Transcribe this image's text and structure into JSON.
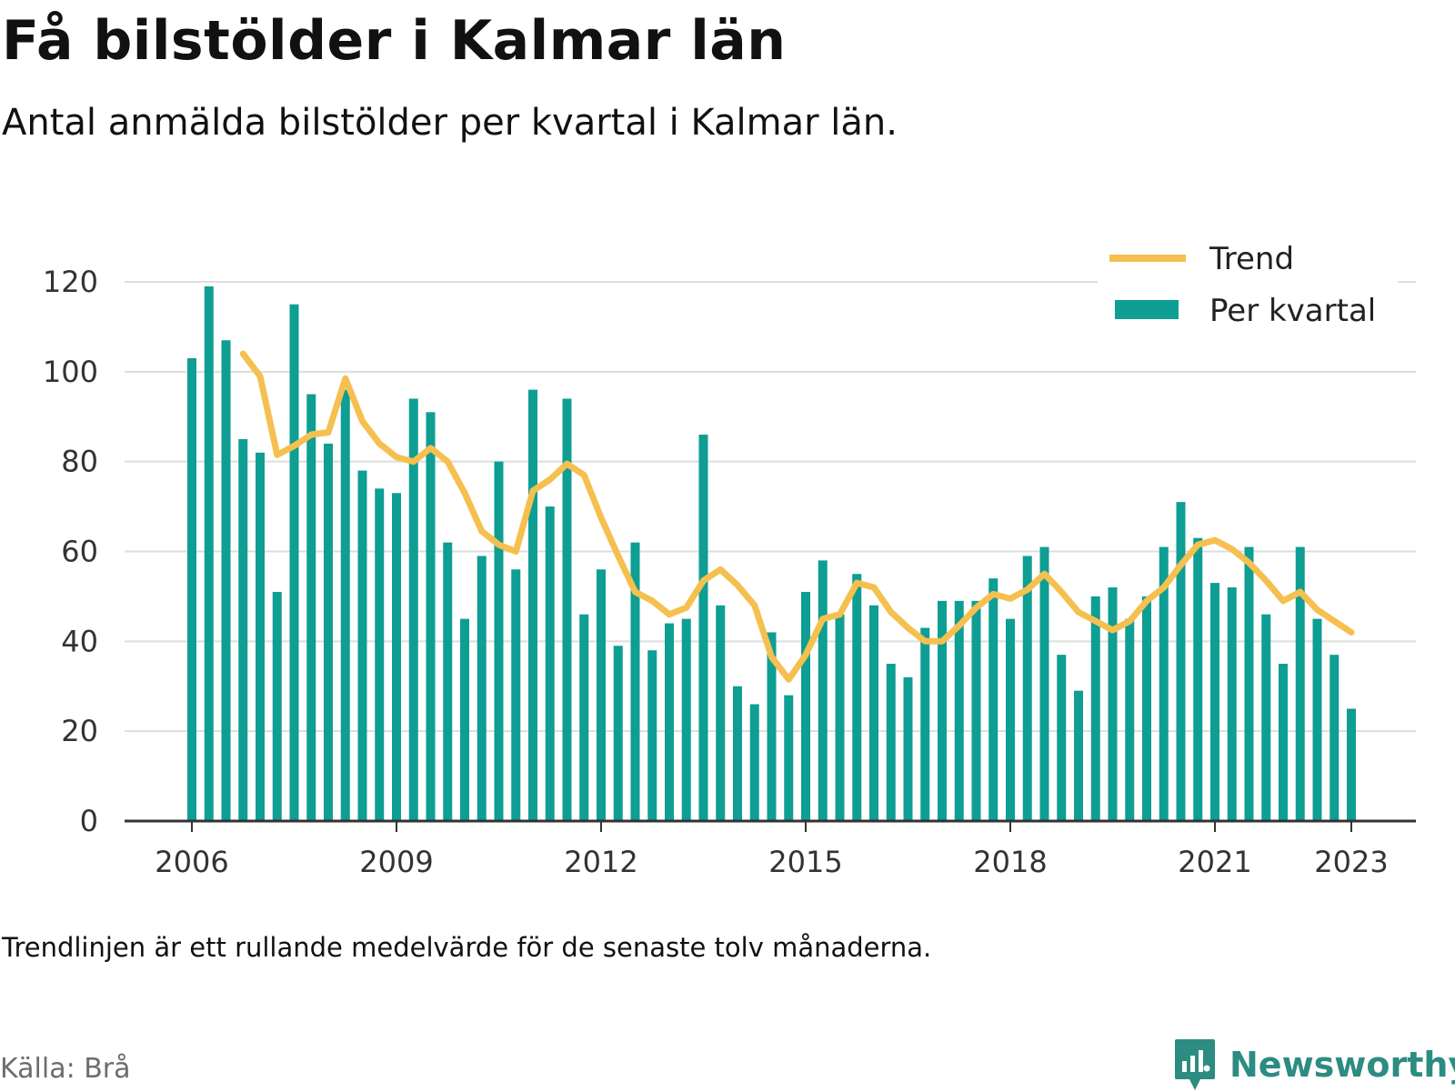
{
  "title": "Få bilstölder i Kalmar län",
  "subtitle": "Antal anmälda bilstölder per kvartal i Kalmar län.",
  "note": "Trendlinjen är ett rullande medelvärde för de senaste tolv månaderna.",
  "source": "Källa: Brå",
  "brand": "Newsworthy",
  "colors": {
    "bars": "#0e9e93",
    "trend": "#f5c04f",
    "grid": "#dddddd",
    "axis": "#333333"
  },
  "chart_data": {
    "type": "bar",
    "ylim": [
      0,
      120
    ],
    "yticks": [
      0,
      20,
      40,
      60,
      80,
      100,
      120
    ],
    "xticks": [
      {
        "label": "2006",
        "year": 2006
      },
      {
        "label": "2009",
        "year": 2009
      },
      {
        "label": "2012",
        "year": 2012
      },
      {
        "label": "2015",
        "year": 2015
      },
      {
        "label": "2018",
        "year": 2018
      },
      {
        "label": "2021",
        "year": 2021
      },
      {
        "label": "2023",
        "year": 2023
      }
    ],
    "legend": {
      "position": "top-right",
      "entries": [
        "Trend",
        "Per kvartal"
      ]
    },
    "grid": true,
    "x": [
      "2006 Q1",
      "2006 Q2",
      "2006 Q3",
      "2006 Q4",
      "2007 Q1",
      "2007 Q2",
      "2007 Q3",
      "2007 Q4",
      "2008 Q1",
      "2008 Q2",
      "2008 Q3",
      "2008 Q4",
      "2009 Q1",
      "2009 Q2",
      "2009 Q3",
      "2009 Q4",
      "2010 Q1",
      "2010 Q2",
      "2010 Q3",
      "2010 Q4",
      "2011 Q1",
      "2011 Q2",
      "2011 Q3",
      "2011 Q4",
      "2012 Q1",
      "2012 Q2",
      "2012 Q3",
      "2012 Q4",
      "2013 Q1",
      "2013 Q2",
      "2013 Q3",
      "2013 Q4",
      "2014 Q1",
      "2014 Q2",
      "2014 Q3",
      "2014 Q4",
      "2015 Q1",
      "2015 Q2",
      "2015 Q3",
      "2015 Q4",
      "2016 Q1",
      "2016 Q2",
      "2016 Q3",
      "2016 Q4",
      "2017 Q1",
      "2017 Q2",
      "2017 Q3",
      "2017 Q4",
      "2018 Q1",
      "2018 Q2",
      "2018 Q3",
      "2018 Q4",
      "2019 Q1",
      "2019 Q2",
      "2019 Q3",
      "2019 Q4",
      "2020 Q1",
      "2020 Q2",
      "2020 Q3",
      "2020 Q4",
      "2021 Q1",
      "2021 Q2",
      "2021 Q3",
      "2021 Q4",
      "2022 Q1",
      "2022 Q2",
      "2022 Q3",
      "2022 Q4",
      "2023 Q1"
    ],
    "series": [
      {
        "name": "Per kvartal",
        "type": "bar",
        "values": [
          103,
          119,
          107,
          85,
          82,
          51,
          115,
          95,
          84,
          96,
          78,
          74,
          73,
          94,
          91,
          62,
          45,
          59,
          80,
          56,
          96,
          70,
          94,
          46,
          56,
          39,
          62,
          38,
          44,
          45,
          86,
          48,
          30,
          26,
          42,
          28,
          51,
          58,
          46,
          55,
          48,
          35,
          32,
          43,
          49,
          49,
          49,
          54,
          45,
          59,
          61,
          37,
          29,
          50,
          52,
          45,
          50,
          61,
          71,
          63,
          53,
          52,
          61,
          46,
          35,
          61,
          45,
          37,
          25
        ]
      },
      {
        "name": "Trend",
        "type": "line",
        "values": [
          null,
          null,
          null,
          104,
          99,
          81.5,
          83.5,
          86,
          86.5,
          98.5,
          89,
          84,
          81,
          80,
          83,
          80,
          73,
          64.5,
          61.5,
          60,
          73.5,
          76,
          79.5,
          77,
          67.5,
          59,
          51,
          49,
          46,
          47.5,
          53.5,
          56,
          52.5,
          48,
          36.5,
          31.5,
          37,
          45,
          46,
          53,
          52,
          46.5,
          43,
          40,
          40,
          43.5,
          47.5,
          50.5,
          49.5,
          51.5,
          55,
          51,
          46.5,
          44.5,
          42.5,
          44.5,
          49,
          52,
          57,
          61.5,
          62.5,
          60.5,
          57.5,
          53.5,
          49,
          51,
          47,
          44.5,
          42
        ]
      }
    ]
  }
}
